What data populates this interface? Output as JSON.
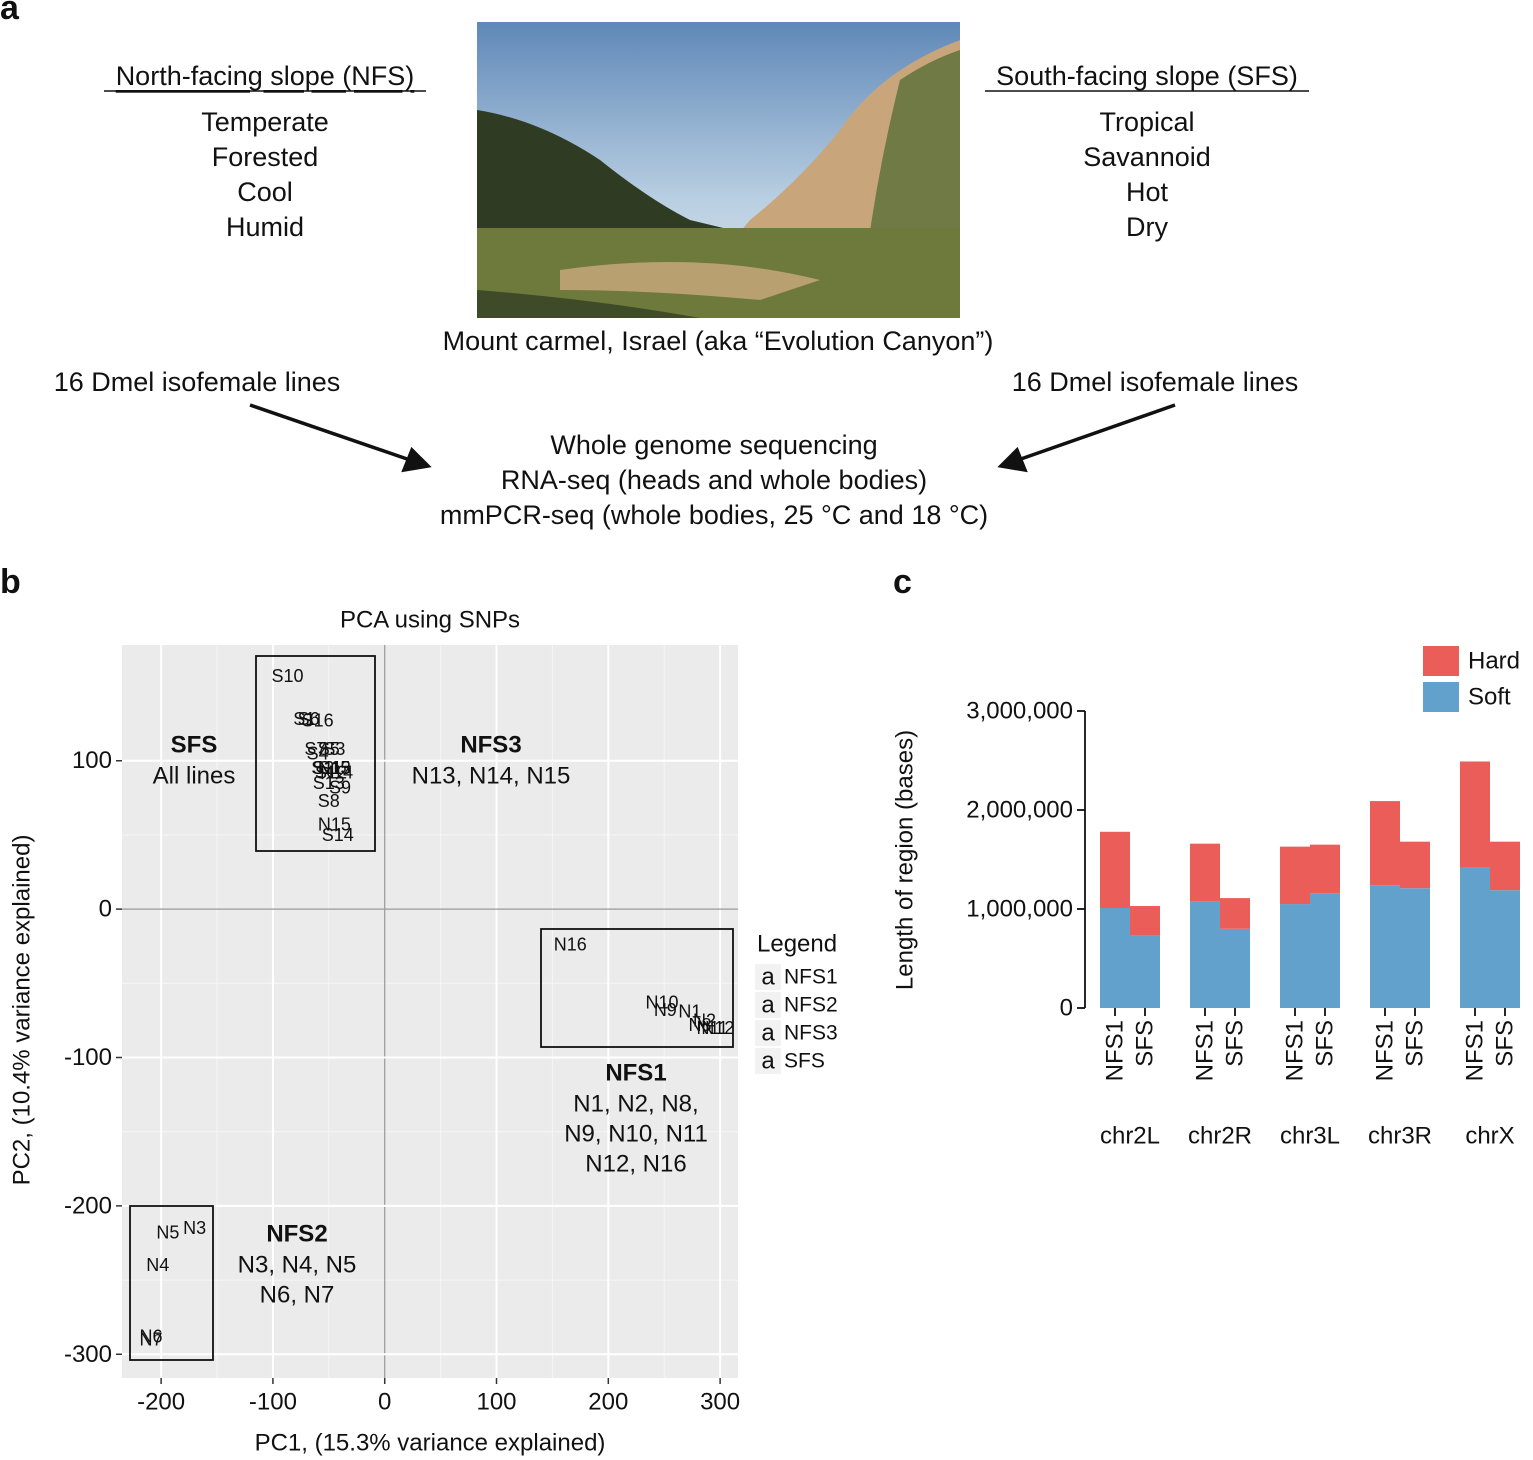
{
  "panel_labels": [
    "a",
    "b",
    "c"
  ],
  "panel_a": {
    "left_heading": "North-facing slope (NFS)",
    "left_traits": [
      "Temperate",
      "Forested",
      "Cool",
      "Humid"
    ],
    "right_heading": "South-facing slope (SFS)",
    "right_traits": [
      "Tropical",
      "Savannoid",
      "Hot",
      "Dry"
    ],
    "photo_caption": "Mount carmel, Israel (aka “Evolution Canyon”)",
    "left_lines": "16 Dmel isofemale lines",
    "right_lines": "16 Dmel isofemale lines",
    "methods": [
      "Whole genome sequencing",
      "RNA-seq (heads and whole bodies)",
      "mmPCR-seq (whole bodies, 25 °C and 18 °C)"
    ]
  },
  "chart_data": [
    {
      "type": "scatter",
      "title": "PCA using SNPs",
      "x_label": "PC1, (15.3% variance explained)",
      "y_label": "PC2, (10.4% variance explained)",
      "xlim": [
        -235,
        316
      ],
      "ylim": [
        -316,
        178
      ],
      "xticks": [
        -200,
        -100,
        0,
        100,
        200,
        300
      ],
      "yticks": [
        -300,
        -200,
        -100,
        0,
        100
      ],
      "grid": true,
      "legend_title": "Legend",
      "legend_key": "a",
      "series": [
        {
          "name": "NFS1",
          "color": "#2bb8bf",
          "labels": [
            "N16",
            "N10",
            "N9",
            "N1",
            "N2",
            "N8",
            "N11",
            "N12"
          ],
          "x": [
            166,
            248,
            251,
            273,
            286,
            282,
            293,
            298
          ],
          "y": [
            -24,
            -63,
            -68,
            -69,
            -75,
            -78,
            -80,
            -80
          ]
        },
        {
          "name": "NFS2",
          "color": "#9a84c8",
          "labels": [
            "N5",
            "N3",
            "N4",
            "N6",
            "N7"
          ],
          "x": [
            -194,
            -170,
            -203,
            -209,
            -209
          ],
          "y": [
            -218,
            -215,
            -240,
            -288,
            -290
          ]
        },
        {
          "name": "NFS3",
          "color": "#e4574c",
          "labels": [
            "N13",
            "N14",
            "N15"
          ],
          "x": [
            -45,
            -43,
            -45
          ],
          "y": [
            95,
            92,
            57
          ]
        },
        {
          "name": "SFS",
          "color": "#f4a07f",
          "labels": [
            "S1",
            "S2",
            "S3",
            "S4",
            "S5",
            "S6",
            "S7",
            "S8",
            "S9",
            "S10",
            "S11",
            "S12",
            "S13",
            "S14",
            "S15",
            "S16"
          ],
          "x": [
            -72,
            -55,
            -45,
            -60,
            -50,
            -68,
            -62,
            -50,
            -40,
            -87,
            -52,
            -48,
            -50,
            -42,
            -45,
            -60
          ],
          "y": [
            128,
            95,
            108,
            105,
            108,
            128,
            108,
            73,
            82,
            157,
            95,
            92,
            85,
            50,
            95,
            127
          ]
        }
      ],
      "annotations": [
        {
          "title": "SFS",
          "lines": [
            "All lines"
          ]
        },
        {
          "title": "NFS3",
          "lines": [
            "N13, N14, N15"
          ]
        },
        {
          "title": "NFS1",
          "lines": [
            "N1, N2, N8,",
            "N9, N10, N11",
            "N12, N16"
          ]
        },
        {
          "title": "NFS2",
          "lines": [
            "N3, N4, N5",
            "N6, N7"
          ]
        }
      ]
    },
    {
      "type": "bar",
      "stacked": true,
      "y_label": "Length of region (bases)",
      "groups": [
        "chr2L",
        "chr2R",
        "chr3L",
        "chr3R",
        "chrX"
      ],
      "subgroups": [
        "NFS1",
        "SFS"
      ],
      "ylim": [
        0,
        3000000
      ],
      "yticks": [
        0,
        {
          "value": 1000000,
          "label": "1,000,000"
        },
        {
          "value": 2000000,
          "label": "2,000,000"
        },
        {
          "value": 3000000,
          "label": "3,000,000"
        }
      ],
      "legend": "top-right",
      "series": [
        {
          "name": "Soft",
          "color": "#62a1cc",
          "values": [
            1010000,
            730000,
            1080000,
            800000,
            1050000,
            1160000,
            1240000,
            1210000,
            1420000,
            1190000
          ]
        },
        {
          "name": "Hard",
          "color": "#ea5d59",
          "values": [
            770000,
            300000,
            580000,
            310000,
            580000,
            490000,
            850000,
            470000,
            1070000,
            490000
          ]
        }
      ]
    }
  ]
}
